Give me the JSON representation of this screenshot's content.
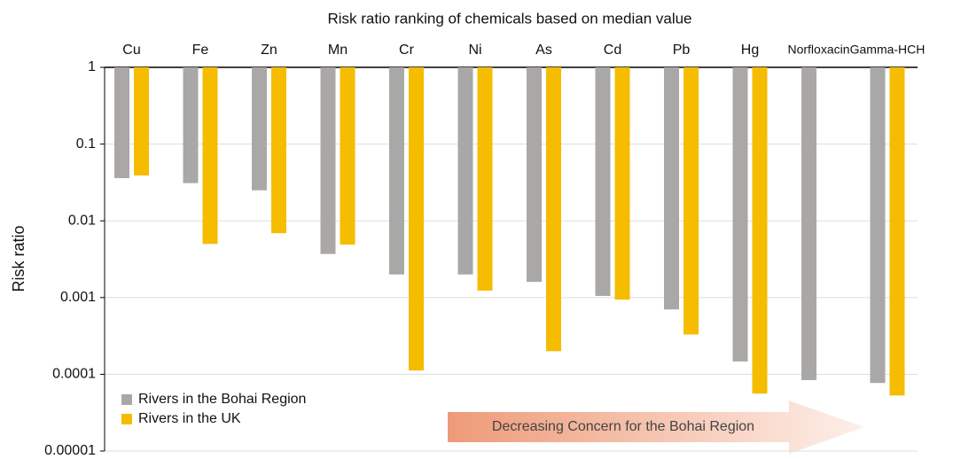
{
  "chart_data": {
    "type": "bar",
    "title": "Risk ratio ranking of chemicals based on median value",
    "y_label": "Risk ratio",
    "log_scale": true,
    "categories": [
      "Cu",
      "Fe",
      "Zn",
      "Mn",
      "Cr",
      "Ni",
      "As",
      "Cd",
      "Pb",
      "Hg",
      "Norfloxacin",
      "Gamma-HCH"
    ],
    "series": [
      {
        "name": "Rivers in the Bohai Region",
        "color": "#aaa7a7",
        "values": [
          0.036,
          0.031,
          0.025,
          0.0037,
          0.002,
          0.002,
          0.0016,
          0.00105,
          0.0007,
          0.000147,
          8.4e-05,
          7.7e-05
        ]
      },
      {
        "name": "Rivers in the UK",
        "color": "#f5bc00",
        "values": [
          0.039,
          0.005,
          0.0069,
          0.0049,
          0.000112,
          0.00123,
          0.0002,
          0.00094,
          0.00033,
          5.6e-05,
          null,
          5.3e-05
        ]
      }
    ],
    "ylim": [
      1e-05,
      1
    ],
    "yticks": [
      1,
      0.1,
      0.01,
      0.001,
      0.0001,
      1e-05
    ],
    "annotation": "Decreasing Concern for the Bohai Region",
    "legend": "lower left"
  }
}
